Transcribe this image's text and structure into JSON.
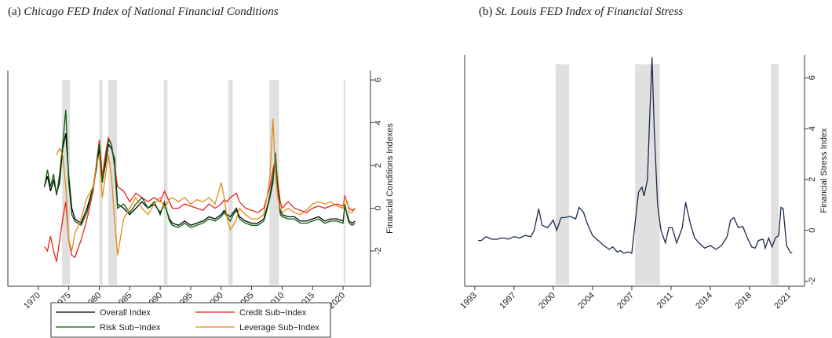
{
  "chart_data": [
    {
      "type": "line",
      "panel": "(a)",
      "title": "Chicago FED Index of National Financial Conditions",
      "ylabel": "Financial Conditions Indexes",
      "y_axis_side": "right",
      "legend": "bottom",
      "grid": false,
      "xlim": [
        1965,
        2024.5
      ],
      "ylim": [
        -3.65,
        6.44
      ],
      "xticks": [
        1970,
        1975,
        1980,
        1985,
        1990,
        1995,
        2000,
        2005,
        2010,
        2015,
        2020
      ],
      "yticks": [
        -2,
        0,
        2,
        4,
        6
      ],
      "recession_color": "#e0e0e0",
      "recessions": [
        [
          1973.9,
          1975.2
        ],
        [
          1980.0,
          1980.5
        ],
        [
          1981.5,
          1982.9
        ],
        [
          1990.6,
          1991.2
        ],
        [
          2001.2,
          2001.9
        ],
        [
          2007.9,
          2009.5
        ],
        [
          2020.1,
          2020.4
        ]
      ],
      "x": [
        1971,
        1971.5,
        1972,
        1972.5,
        1973,
        1973.5,
        1974,
        1974.5,
        1975,
        1975.5,
        1976,
        1977,
        1978,
        1979,
        1979.5,
        1980,
        1980.5,
        1981,
        1981.5,
        1982,
        1982.5,
        1983,
        1984,
        1985,
        1986,
        1987,
        1988,
        1989,
        1990,
        1990.7,
        1991.5,
        1992,
        1993,
        1994,
        1995,
        1996,
        1997,
        1998,
        1999,
        2000,
        2000.5,
        2001,
        2001.5,
        2002,
        2002.5,
        2003,
        2004,
        2005,
        2006,
        2007,
        2007.5,
        2008,
        2008.5,
        2008.9,
        2009.3,
        2009.7,
        2010,
        2011,
        2012,
        2013,
        2014,
        2015,
        2016,
        2017,
        2018,
        2019,
        2020,
        2020.3,
        2020.7,
        2021,
        2021.5,
        2022
      ],
      "series": [
        {
          "name": "Overall Index",
          "color": "#000000",
          "values": [
            1.0,
            1.5,
            0.8,
            1.3,
            0.7,
            1.2,
            2.8,
            3.5,
            1.5,
            0.0,
            -0.5,
            -0.7,
            0.0,
            1.0,
            1.8,
            2.8,
            1.3,
            2.0,
            3.0,
            2.8,
            2.3,
            0.2,
            0.0,
            -0.3,
            0.0,
            0.3,
            0.0,
            0.2,
            -0.2,
            0.2,
            -0.5,
            -0.7,
            -0.8,
            -0.6,
            -0.8,
            -0.7,
            -0.6,
            -0.4,
            -0.5,
            -0.3,
            -0.1,
            -0.3,
            -0.4,
            -0.2,
            0.0,
            -0.4,
            -0.6,
            -0.7,
            -0.7,
            -0.5,
            0.0,
            0.6,
            1.4,
            2.5,
            1.0,
            -0.1,
            -0.3,
            -0.4,
            -0.4,
            -0.6,
            -0.6,
            -0.5,
            -0.4,
            -0.6,
            -0.5,
            -0.5,
            -0.6,
            0.1,
            -0.3,
            -0.6,
            -0.7,
            -0.6
          ]
        },
        {
          "name": "Credit Sub−Index",
          "color": "#e8231e",
          "values": [
            -1.8,
            -2.0,
            -1.3,
            -2.0,
            -2.5,
            -1.5,
            -0.5,
            0.3,
            -1.5,
            -2.2,
            -2.3,
            -1.5,
            -0.5,
            0.8,
            2.0,
            3.2,
            1.5,
            2.5,
            3.3,
            3.0,
            2.0,
            1.0,
            0.8,
            0.3,
            0.7,
            0.5,
            0.3,
            0.5,
            0.3,
            0.8,
            0.3,
            0.0,
            0.0,
            0.2,
            0.1,
            0.0,
            -0.1,
            0.2,
            0.0,
            0.2,
            0.4,
            0.3,
            0.5,
            0.6,
            0.7,
            0.3,
            0.0,
            -0.1,
            -0.2,
            0.0,
            0.5,
            1.0,
            1.8,
            2.3,
            1.2,
            0.3,
            0.0,
            0.3,
            0.0,
            -0.1,
            -0.2,
            0.0,
            0.1,
            0.0,
            0.1,
            0.2,
            0.1,
            0.6,
            0.2,
            0.0,
            -0.1,
            0.0
          ]
        },
        {
          "name": "Risk Sub−Index",
          "color": "#0a5c0a",
          "values": [
            1.0,
            1.8,
            1.0,
            1.6,
            0.6,
            1.6,
            3.0,
            4.6,
            1.2,
            -0.3,
            -0.6,
            -0.8,
            -0.2,
            1.0,
            2.0,
            3.0,
            1.2,
            2.2,
            3.2,
            3.0,
            2.0,
            0.0,
            0.2,
            -0.2,
            0.2,
            0.5,
            0.0,
            0.3,
            -0.3,
            0.3,
            -0.6,
            -0.8,
            -0.9,
            -0.7,
            -0.9,
            -0.8,
            -0.7,
            -0.5,
            -0.6,
            -0.4,
            -0.2,
            -0.4,
            -0.6,
            -0.3,
            -0.1,
            -0.5,
            -0.7,
            -0.8,
            -0.8,
            -0.6,
            -0.1,
            0.5,
            1.2,
            2.6,
            0.8,
            -0.3,
            -0.4,
            -0.5,
            -0.5,
            -0.7,
            -0.7,
            -0.6,
            -0.5,
            -0.7,
            -0.6,
            -0.6,
            -0.7,
            0.2,
            -0.4,
            -0.7,
            -0.8,
            -0.7
          ]
        },
        {
          "name": "Leverage Sub−Index",
          "color": "#e08c1a",
          "values": [
            null,
            null,
            null,
            null,
            2.5,
            2.8,
            2.5,
            1.0,
            -1.5,
            -2.0,
            -1.2,
            -0.5,
            0.5,
            1.0,
            2.0,
            2.5,
            0.5,
            1.5,
            2.5,
            1.5,
            -0.5,
            -2.2,
            -0.5,
            0.0,
            0.5,
            0.0,
            -0.3,
            0.2,
            0.5,
            0.0,
            0.4,
            0.5,
            0.3,
            0.5,
            0.2,
            0.4,
            0.3,
            0.5,
            0.2,
            1.2,
            0.5,
            -0.5,
            -1.0,
            -0.8,
            -0.5,
            0.0,
            -0.3,
            -0.5,
            -0.5,
            -0.3,
            0.5,
            1.5,
            4.2,
            1.5,
            0.5,
            0.0,
            -0.2,
            0.0,
            -0.2,
            -0.3,
            -0.1,
            0.2,
            0.3,
            0.2,
            0.3,
            0.1,
            0.0,
            0.5,
            0.3,
            -0.2,
            -0.2,
            0.0
          ]
        }
      ]
    },
    {
      "type": "line",
      "panel": "(b)",
      "title": "St. Louis FED Index of Financial Stress",
      "ylabel": "Financial Stress Index",
      "y_axis_side": "right",
      "grid": false,
      "xlim": [
        1992.1,
        2022.4
      ],
      "ylim": [
        -2.2,
        6.9
      ],
      "xticks": [
        1993,
        {
          "value": 1996.5,
          "label": "1997"
        },
        2000,
        {
          "value": 2003.5,
          "label": "2004"
        },
        2007,
        {
          "value": 2010.5,
          "label": "2011"
        },
        2014,
        {
          "value": 2017.5,
          "label": "2018"
        },
        2021
      ],
      "yticks": [
        -2,
        0,
        2,
        4,
        6
      ],
      "recession_color": "#e0e0e0",
      "recessions": [
        [
          2000.2,
          2001.4
        ],
        [
          2007.3,
          2009.5
        ],
        [
          2019.4,
          2020.1
        ]
      ],
      "x": [
        1993.3,
        1993.6,
        1994,
        1994.5,
        1995,
        1995.5,
        1996,
        1996.5,
        1997,
        1997.5,
        1998,
        1998.3,
        1998.7,
        1999,
        1999.5,
        2000,
        2000.3,
        2000.7,
        2001,
        2001.5,
        2002,
        2002.3,
        2002.7,
        2003,
        2003.5,
        2004,
        2004.5,
        2005,
        2005.3,
        2005.7,
        2006,
        2006.3,
        2006.7,
        2007,
        2007.3,
        2007.6,
        2007.9,
        2008.1,
        2008.4,
        2008.6,
        2008.8,
        2009.0,
        2009.3,
        2009.6,
        2010,
        2010.3,
        2010.6,
        2011,
        2011.5,
        2011.8,
        2012.2,
        2012.6,
        2013,
        2013.5,
        2014,
        2014.5,
        2015,
        2015.5,
        2015.8,
        2016.1,
        2016.5,
        2016.9,
        2017.3,
        2017.7,
        2018,
        2018.3,
        2018.7,
        2018.9,
        2019.2,
        2019.5,
        2019.8,
        2020.1,
        2020.3,
        2020.5,
        2020.8,
        2021.1,
        2021.3
      ],
      "series": [
        {
          "name": "Financial Stress Index",
          "color": "#1c2a4a",
          "values": [
            -0.4,
            -0.4,
            -0.25,
            -0.35,
            -0.35,
            -0.3,
            -0.35,
            -0.25,
            -0.3,
            -0.2,
            -0.25,
            0.0,
            0.85,
            0.2,
            0.1,
            0.4,
            0.0,
            0.5,
            0.5,
            0.55,
            0.45,
            0.9,
            0.7,
            0.3,
            -0.2,
            -0.4,
            -0.6,
            -0.75,
            -0.65,
            -0.85,
            -0.8,
            -0.9,
            -0.85,
            -0.9,
            0.3,
            1.5,
            1.7,
            1.35,
            2.0,
            4.5,
            6.8,
            4.0,
            1.0,
            0.0,
            -0.5,
            0.1,
            0.1,
            -0.5,
            0.1,
            1.1,
            0.3,
            -0.3,
            -0.5,
            -0.7,
            -0.6,
            -0.75,
            -0.6,
            -0.25,
            0.4,
            0.5,
            0.1,
            0.15,
            -0.3,
            -0.65,
            -0.7,
            -0.4,
            -0.35,
            -0.7,
            -0.3,
            -0.65,
            -0.3,
            -0.2,
            0.9,
            0.85,
            -0.6,
            -0.85,
            -0.9
          ]
        }
      ]
    }
  ]
}
